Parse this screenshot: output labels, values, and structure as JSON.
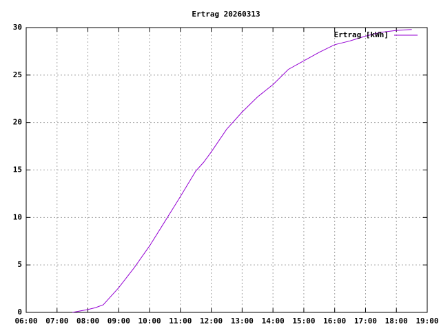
{
  "chart_data": {
    "type": "line",
    "title": "Ertrag 20260313",
    "x": [
      "07:30",
      "08:00",
      "08:15",
      "08:30",
      "09:00",
      "09:30",
      "10:00",
      "10:30",
      "11:00",
      "11:30",
      "11:45",
      "12:00",
      "12:30",
      "13:00",
      "13:30",
      "14:00",
      "14:30",
      "15:00",
      "15:30",
      "16:00",
      "16:30",
      "17:00",
      "17:30",
      "18:00",
      "18:30"
    ],
    "series": [
      {
        "name": "Ertrag [kWh]",
        "color": "#9400d3",
        "values": [
          0.0,
          0.3,
          0.5,
          0.8,
          2.6,
          4.7,
          7.0,
          9.6,
          12.2,
          14.9,
          15.8,
          16.9,
          19.3,
          21.1,
          22.7,
          24.0,
          25.6,
          26.5,
          27.4,
          28.2,
          28.6,
          29.1,
          29.5,
          29.7,
          29.8
        ]
      }
    ],
    "xlim": [
      "06:00",
      "19:00"
    ],
    "xticks": [
      "06:00",
      "07:00",
      "08:00",
      "09:00",
      "10:00",
      "11:00",
      "12:00",
      "13:00",
      "14:00",
      "15:00",
      "16:00",
      "17:00",
      "18:00",
      "19:00"
    ],
    "ylim": [
      0,
      30
    ],
    "yticks": [
      0,
      5,
      10,
      15,
      20,
      25,
      30
    ],
    "grid": true,
    "legend": "top-right"
  }
}
